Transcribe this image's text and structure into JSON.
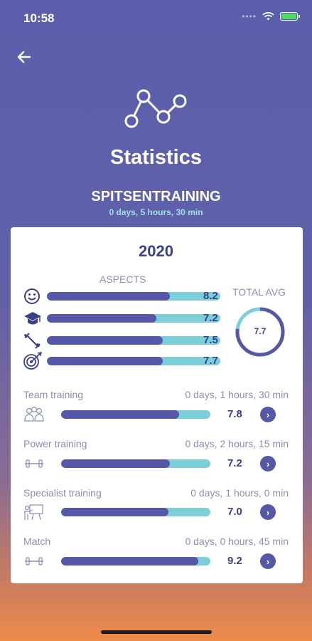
{
  "status_bar": {
    "time": "10:58"
  },
  "header": {
    "title": "Statistics",
    "program": "SPITSENTRAINING",
    "duration": "0 days, 5 hours, 30 min"
  },
  "summary": {
    "year": "2020",
    "aspects_label": "ASPECTS",
    "total_avg_label": "TOTAL AVG",
    "total_avg_value": "7.7",
    "total_avg_fraction": 0.77,
    "aspects": [
      {
        "icon": "smiley-icon",
        "value": "8.2",
        "fraction": 0.71
      },
      {
        "icon": "graduation-cap-icon",
        "value": "7.2",
        "fraction": 0.63
      },
      {
        "icon": "dumbbell-icon",
        "value": "7.5",
        "fraction": 0.67
      },
      {
        "icon": "target-icon",
        "value": "7.7",
        "fraction": 0.67
      }
    ]
  },
  "trainings": [
    {
      "name": "Team training",
      "time": "0 days, 1 hours, 30 min",
      "value": "7.8",
      "fraction": 0.79,
      "icon": "group-icon"
    },
    {
      "name": "Power training",
      "time": "0 days, 2 hours, 15 min",
      "value": "7.2",
      "fraction": 0.73,
      "icon": "dumbbell-icon"
    },
    {
      "name": "Specialist training",
      "time": "0 days, 1 hours, 0 min",
      "value": "7.0",
      "fraction": 0.72,
      "icon": "presentation-icon"
    },
    {
      "name": "Match",
      "time": "0 days, 0 hours, 45 min",
      "value": "9.2",
      "fraction": 0.92,
      "icon": "dumbbell-icon"
    }
  ],
  "colors": {
    "accent": "#5558a7",
    "bar_track": "#7ccfd8",
    "text_dark": "#3b3f8e",
    "duration_text": "#9fe0ec"
  }
}
